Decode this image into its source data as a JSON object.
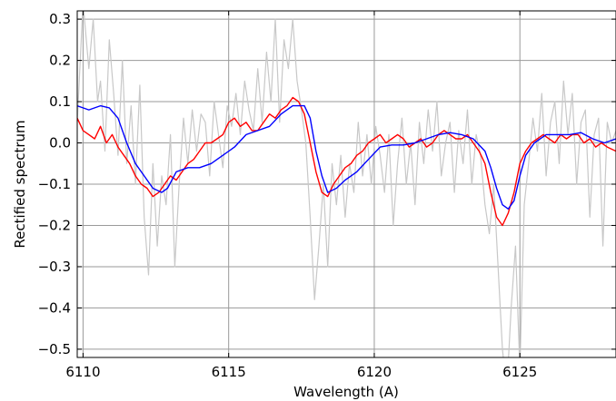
{
  "chart_data": {
    "type": "line",
    "title": "",
    "xlabel": "Wavelength (A)",
    "ylabel": "Rectified spectrum",
    "xlim": [
      6109.8,
      6128.3
    ],
    "ylim": [
      -0.52,
      0.32
    ],
    "grid": true,
    "x_ticks": [
      6110,
      6115,
      6120,
      6125
    ],
    "x_tick_labels": [
      "6110",
      "6115",
      "6120",
      "6125"
    ],
    "y_ticks": [
      0.3,
      0.2,
      0.1,
      0.0,
      -0.1,
      -0.2,
      -0.3,
      -0.4,
      -0.5
    ],
    "y_tick_labels": [
      "0.3",
      "0.2",
      "0.1",
      "0.0",
      "−0.1",
      "−0.2",
      "−0.3",
      "−0.4",
      "−0.5"
    ],
    "series": [
      {
        "color": "#c8c8c8",
        "x": [
          6109.8,
          6110.0,
          6110.2,
          6110.35,
          6110.5,
          6110.6,
          6110.75,
          6110.9,
          6111.05,
          6111.2,
          6111.35,
          6111.5,
          6111.65,
          6111.8,
          6111.95,
          6112.1,
          6112.25,
          6112.4,
          6112.55,
          6112.7,
          6112.85,
          6113.0,
          6113.15,
          6113.3,
          6113.45,
          6113.6,
          6113.75,
          6113.9,
          6114.05,
          6114.2,
          6114.35,
          6114.5,
          6114.65,
          6114.8,
          6114.95,
          6115.1,
          6115.25,
          6115.4,
          6115.55,
          6115.7,
          6115.85,
          6116.0,
          6116.15,
          6116.3,
          6116.45,
          6116.6,
          6116.75,
          6116.9,
          6117.05,
          6117.2,
          6117.35,
          6117.5,
          6117.65,
          6117.8,
          6117.95,
          6118.1,
          6118.25,
          6118.4,
          6118.55,
          6118.7,
          6118.85,
          6119.0,
          6119.15,
          6119.3,
          6119.45,
          6119.6,
          6119.75,
          6119.9,
          6120.05,
          6120.2,
          6120.35,
          6120.5,
          6120.65,
          6120.8,
          6120.95,
          6121.1,
          6121.25,
          6121.4,
          6121.55,
          6121.7,
          6121.85,
          6122.0,
          6122.15,
          6122.3,
          6122.45,
          6122.6,
          6122.75,
          6122.9,
          6123.05,
          6123.2,
          6123.35,
          6123.5,
          6123.65,
          6123.8,
          6123.95,
          6124.1,
          6124.25,
          6124.4,
          6124.55,
          6124.7,
          6124.85,
          6125.0,
          6125.15,
          6125.3,
          6125.45,
          6125.6,
          6125.75,
          6125.9,
          6126.05,
          6126.2,
          6126.35,
          6126.5,
          6126.65,
          6126.8,
          6126.95,
          6127.1,
          6127.25,
          6127.4,
          6127.55,
          6127.7,
          6127.85,
          6128.0,
          6128.15,
          6128.3
        ],
        "y": [
          0.05,
          0.34,
          0.18,
          0.3,
          0.1,
          0.15,
          -0.02,
          0.25,
          0.12,
          -0.03,
          0.2,
          -0.05,
          0.09,
          -0.1,
          0.14,
          -0.18,
          -0.32,
          -0.05,
          -0.25,
          -0.08,
          -0.15,
          0.02,
          -0.3,
          -0.1,
          0.06,
          -0.05,
          0.08,
          -0.02,
          0.07,
          0.05,
          -0.08,
          0.1,
          0.02,
          -0.06,
          0.09,
          0.04,
          0.12,
          0.02,
          0.15,
          0.08,
          0.03,
          0.18,
          0.05,
          0.22,
          0.1,
          0.3,
          0.05,
          0.25,
          0.18,
          0.3,
          0.15,
          0.08,
          0.0,
          -0.18,
          -0.38,
          -0.25,
          -0.1,
          -0.3,
          -0.05,
          -0.15,
          -0.03,
          -0.18,
          -0.05,
          -0.12,
          0.05,
          -0.08,
          0.02,
          -0.1,
          0.04,
          -0.03,
          -0.12,
          0.02,
          -0.2,
          -0.05,
          0.06,
          -0.1,
          0.0,
          -0.15,
          0.05,
          -0.05,
          0.08,
          -0.02,
          0.1,
          -0.08,
          0.0,
          0.05,
          -0.12,
          0.03,
          -0.05,
          0.08,
          -0.1,
          0.02,
          -0.03,
          -0.15,
          -0.22,
          -0.1,
          -0.3,
          -0.5,
          -0.6,
          -0.4,
          -0.25,
          -0.55,
          -0.15,
          -0.05,
          0.06,
          -0.02,
          0.12,
          -0.08,
          0.05,
          0.1,
          -0.05,
          0.15,
          0.02,
          0.12,
          -0.1,
          0.05,
          0.08,
          -0.18,
          0.02,
          0.06,
          -0.25,
          0.05,
          0.0,
          0.03
        ]
      },
      {
        "color": "#ff0000",
        "x": [
          6109.8,
          6110.0,
          6110.2,
          6110.4,
          6110.6,
          6110.8,
          6111.0,
          6111.2,
          6111.4,
          6111.6,
          6111.8,
          6112.0,
          6112.2,
          6112.4,
          6112.6,
          6112.8,
          6113.0,
          6113.2,
          6113.4,
          6113.6,
          6113.8,
          6114.0,
          6114.2,
          6114.4,
          6114.6,
          6114.8,
          6115.0,
          6115.2,
          6115.4,
          6115.6,
          6115.8,
          6116.0,
          6116.2,
          6116.4,
          6116.6,
          6116.8,
          6117.0,
          6117.2,
          6117.4,
          6117.6,
          6117.8,
          6118.0,
          6118.2,
          6118.4,
          6118.6,
          6118.8,
          6119.0,
          6119.2,
          6119.4,
          6119.6,
          6119.8,
          6120.0,
          6120.2,
          6120.4,
          6120.6,
          6120.8,
          6121.0,
          6121.2,
          6121.4,
          6121.6,
          6121.8,
          6122.0,
          6122.2,
          6122.4,
          6122.6,
          6122.8,
          6123.0,
          6123.2,
          6123.4,
          6123.6,
          6123.8,
          6124.0,
          6124.2,
          6124.4,
          6124.6,
          6124.8,
          6125.0,
          6125.2,
          6125.4,
          6125.6,
          6125.8,
          6126.0,
          6126.2,
          6126.4,
          6126.6,
          6126.8,
          6127.0,
          6127.2,
          6127.4,
          6127.6,
          6127.8,
          6128.0,
          6128.3
        ],
        "y": [
          0.06,
          0.03,
          0.02,
          0.01,
          0.04,
          0.0,
          0.02,
          -0.01,
          -0.03,
          -0.05,
          -0.08,
          -0.1,
          -0.11,
          -0.13,
          -0.12,
          -0.1,
          -0.08,
          -0.09,
          -0.07,
          -0.05,
          -0.04,
          -0.02,
          0.0,
          0.0,
          0.01,
          0.02,
          0.05,
          0.06,
          0.04,
          0.05,
          0.03,
          0.03,
          0.05,
          0.07,
          0.06,
          0.08,
          0.09,
          0.11,
          0.1,
          0.07,
          0.0,
          -0.07,
          -0.12,
          -0.13,
          -0.1,
          -0.08,
          -0.06,
          -0.05,
          -0.03,
          -0.02,
          0.0,
          0.01,
          0.02,
          0.0,
          0.01,
          0.02,
          0.01,
          -0.01,
          0.0,
          0.01,
          -0.01,
          0.0,
          0.02,
          0.03,
          0.02,
          0.01,
          0.01,
          0.02,
          0.0,
          -0.02,
          -0.05,
          -0.12,
          -0.18,
          -0.2,
          -0.17,
          -0.12,
          -0.05,
          -0.02,
          0.0,
          0.01,
          0.02,
          0.01,
          0.0,
          0.02,
          0.01,
          0.02,
          0.02,
          0.0,
          0.01,
          -0.01,
          0.0,
          -0.01,
          -0.02
        ]
      },
      {
        "color": "#0000ff",
        "x": [
          6109.8,
          6110.2,
          6110.6,
          6110.9,
          6111.2,
          6111.5,
          6111.8,
          6112.1,
          6112.4,
          6112.7,
          6112.9,
          6113.2,
          6113.6,
          6114.0,
          6114.4,
          6114.8,
          6115.2,
          6115.6,
          6116.0,
          6116.4,
          6116.8,
          6117.2,
          6117.6,
          6117.8,
          6118.0,
          6118.2,
          6118.4,
          6118.7,
          6119.0,
          6119.4,
          6119.8,
          6120.2,
          6120.6,
          6121.0,
          6121.4,
          6121.8,
          6122.2,
          6122.6,
          6123.0,
          6123.4,
          6123.8,
          6124.0,
          6124.2,
          6124.4,
          6124.6,
          6124.8,
          6125.0,
          6125.2,
          6125.5,
          6125.9,
          6126.3,
          6126.7,
          6127.1,
          6127.5,
          6127.9,
          6128.3
        ],
        "y": [
          0.09,
          0.08,
          0.09,
          0.085,
          0.06,
          0.0,
          -0.05,
          -0.08,
          -0.11,
          -0.12,
          -0.11,
          -0.07,
          -0.06,
          -0.06,
          -0.05,
          -0.03,
          -0.01,
          0.02,
          0.03,
          0.04,
          0.07,
          0.09,
          0.09,
          0.06,
          -0.02,
          -0.08,
          -0.12,
          -0.11,
          -0.09,
          -0.07,
          -0.04,
          -0.01,
          -0.005,
          -0.005,
          0.0,
          0.01,
          0.02,
          0.025,
          0.02,
          0.01,
          -0.02,
          -0.06,
          -0.11,
          -0.15,
          -0.16,
          -0.14,
          -0.08,
          -0.03,
          0.0,
          0.02,
          0.02,
          0.02,
          0.025,
          0.01,
          0.0,
          0.01
        ]
      }
    ]
  }
}
